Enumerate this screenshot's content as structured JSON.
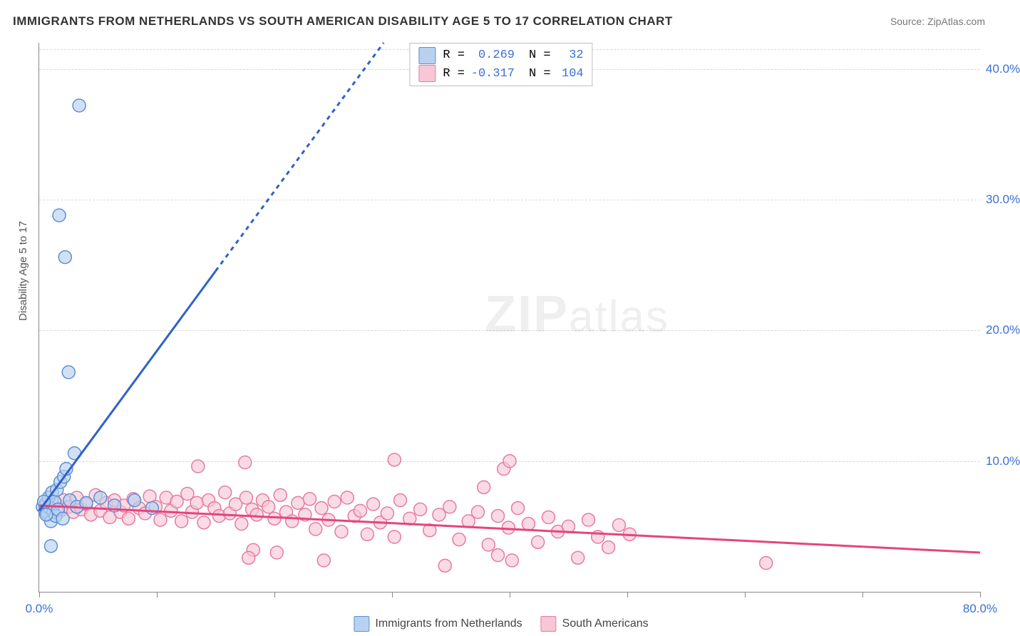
{
  "title": "IMMIGRANTS FROM NETHERLANDS VS SOUTH AMERICAN DISABILITY AGE 5 TO 17 CORRELATION CHART",
  "source": "Source: ZipAtlas.com",
  "ylabel": "Disability Age 5 to 17",
  "watermark_zip": "ZIP",
  "watermark_atlas": "atlas",
  "chart": {
    "type": "scatter-correlation",
    "background_color": "#ffffff",
    "grid_color": "#d9d9d9",
    "axis_color": "#888888",
    "axis_label_color": "#3b6fd6",
    "xlim": [
      0,
      80
    ],
    "ylim": [
      0,
      42
    ],
    "x_ticks": [
      0,
      10,
      20,
      30,
      40,
      50,
      60,
      70,
      80
    ],
    "x_tick_labels": {
      "0": "0.0%",
      "80": "80.0%"
    },
    "y_ticks": [
      10,
      20,
      30,
      40
    ],
    "y_tick_labels": {
      "10": "10.0%",
      "20": "20.0%",
      "30": "30.0%",
      "40": "40.0%"
    },
    "marker_radius": 9,
    "marker_stroke_width": 1.5,
    "trend_line_width": 3,
    "trend_dash": "6,6"
  },
  "series_a": {
    "label": "Immigrants from Netherlands",
    "fill": "#b9d1f0",
    "stroke": "#5b8fd6",
    "trend_color": "#2e62c9",
    "r_value": "0.269",
    "n_value": "32",
    "trend": {
      "x1": 0,
      "y1": 6.2,
      "x2": 80,
      "y2": 104,
      "solid_until_x": 15
    },
    "points": [
      [
        0.3,
        6.5
      ],
      [
        0.5,
        6.2
      ],
      [
        0.6,
        6.8
      ],
      [
        0.7,
        6.0
      ],
      [
        0.8,
        7.2
      ],
      [
        0.9,
        6.4
      ],
      [
        1.0,
        5.4
      ],
      [
        1.1,
        7.6
      ],
      [
        1.2,
        6.1
      ],
      [
        1.3,
        6.9
      ],
      [
        1.4,
        5.8
      ],
      [
        1.5,
        7.8
      ],
      [
        1.6,
        6.3
      ],
      [
        1.8,
        8.4
      ],
      [
        2.0,
        5.6
      ],
      [
        2.1,
        8.8
      ],
      [
        2.3,
        9.4
      ],
      [
        2.6,
        7.0
      ],
      [
        3.0,
        10.6
      ],
      [
        3.2,
        6.5
      ],
      [
        1.0,
        3.5
      ],
      [
        2.5,
        16.8
      ],
      [
        2.2,
        25.6
      ],
      [
        1.7,
        28.8
      ],
      [
        3.4,
        37.2
      ],
      [
        4.0,
        6.8
      ],
      [
        5.2,
        7.2
      ],
      [
        6.4,
        6.6
      ],
      [
        8.1,
        7.0
      ],
      [
        9.6,
        6.4
      ],
      [
        0.4,
        6.9
      ],
      [
        0.6,
        5.9
      ]
    ]
  },
  "series_b": {
    "label": "South Americans",
    "fill": "#f7c7d5",
    "stroke": "#e77aa0",
    "trend_color": "#e6447c",
    "r_value": "-0.317",
    "n_value": "104",
    "trend": {
      "x1": 0,
      "y1": 6.6,
      "x2": 80,
      "y2": 3.0
    },
    "points": [
      [
        0.5,
        6.6
      ],
      [
        1.0,
        6.4
      ],
      [
        1.4,
        6.8
      ],
      [
        1.8,
        6.2
      ],
      [
        2.1,
        7.0
      ],
      [
        2.5,
        6.5
      ],
      [
        2.9,
        6.1
      ],
      [
        3.2,
        7.2
      ],
      [
        3.6,
        6.3
      ],
      [
        4.0,
        6.7
      ],
      [
        4.4,
        5.9
      ],
      [
        4.8,
        7.4
      ],
      [
        5.2,
        6.2
      ],
      [
        5.7,
        6.8
      ],
      [
        6.0,
        5.7
      ],
      [
        6.4,
        7.0
      ],
      [
        6.9,
        6.1
      ],
      [
        7.2,
        6.6
      ],
      [
        7.6,
        5.6
      ],
      [
        8.0,
        7.1
      ],
      [
        8.5,
        6.4
      ],
      [
        9.0,
        6.0
      ],
      [
        9.4,
        7.3
      ],
      [
        9.9,
        6.5
      ],
      [
        10.3,
        5.5
      ],
      [
        10.8,
        7.2
      ],
      [
        11.2,
        6.2
      ],
      [
        11.7,
        6.9
      ],
      [
        12.1,
        5.4
      ],
      [
        12.6,
        7.5
      ],
      [
        13.0,
        6.1
      ],
      [
        13.4,
        6.8
      ],
      [
        13.5,
        9.6
      ],
      [
        14.0,
        5.3
      ],
      [
        14.4,
        7.0
      ],
      [
        14.9,
        6.4
      ],
      [
        15.3,
        5.8
      ],
      [
        15.8,
        7.6
      ],
      [
        16.2,
        6.0
      ],
      [
        16.7,
        6.7
      ],
      [
        17.2,
        5.2
      ],
      [
        17.6,
        7.2
      ],
      [
        18.1,
        6.3
      ],
      [
        18.5,
        5.9
      ],
      [
        19.0,
        7.0
      ],
      [
        17.5,
        9.9
      ],
      [
        18.2,
        3.2
      ],
      [
        19.5,
        6.5
      ],
      [
        20.0,
        5.6
      ],
      [
        20.5,
        7.4
      ],
      [
        21.0,
        6.1
      ],
      [
        21.5,
        5.4
      ],
      [
        22.0,
        6.8
      ],
      [
        22.6,
        5.9
      ],
      [
        23.0,
        7.1
      ],
      [
        23.5,
        4.8
      ],
      [
        24.0,
        6.4
      ],
      [
        24.6,
        5.5
      ],
      [
        25.1,
        6.9
      ],
      [
        25.7,
        4.6
      ],
      [
        26.2,
        7.2
      ],
      [
        26.8,
        5.8
      ],
      [
        27.3,
        6.2
      ],
      [
        27.9,
        4.4
      ],
      [
        28.4,
        6.7
      ],
      [
        29.0,
        5.3
      ],
      [
        29.6,
        6.0
      ],
      [
        30.2,
        4.2
      ],
      [
        30.7,
        7.0
      ],
      [
        30.2,
        10.1
      ],
      [
        31.5,
        5.6
      ],
      [
        32.4,
        6.3
      ],
      [
        33.2,
        4.7
      ],
      [
        34.0,
        5.9
      ],
      [
        34.9,
        6.5
      ],
      [
        35.7,
        4.0
      ],
      [
        36.5,
        5.4
      ],
      [
        37.3,
        6.1
      ],
      [
        38.2,
        3.6
      ],
      [
        39.0,
        5.8
      ],
      [
        39.9,
        4.9
      ],
      [
        40.7,
        6.4
      ],
      [
        39.5,
        9.4
      ],
      [
        37.8,
        8.0
      ],
      [
        39.0,
        2.8
      ],
      [
        41.6,
        5.2
      ],
      [
        42.4,
        3.8
      ],
      [
        43.3,
        5.7
      ],
      [
        44.1,
        4.6
      ],
      [
        45.0,
        5.0
      ],
      [
        45.8,
        2.6
      ],
      [
        46.7,
        5.5
      ],
      [
        47.5,
        4.2
      ],
      [
        48.4,
        3.4
      ],
      [
        49.3,
        5.1
      ],
      [
        50.2,
        4.4
      ],
      [
        40.0,
        10.0
      ],
      [
        40.2,
        2.4
      ],
      [
        61.8,
        2.2
      ],
      [
        34.5,
        2.0
      ],
      [
        17.8,
        2.6
      ],
      [
        20.2,
        3.0
      ],
      [
        24.2,
        2.4
      ]
    ]
  },
  "legend_top": {
    "r_label": "R =",
    "n_label": "N ="
  },
  "ytick10": "10.0%",
  "ytick20": "20.0%",
  "ytick30": "30.0%",
  "ytick40": "40.0%",
  "xtick0": "0.0%",
  "xtick80": "80.0%"
}
